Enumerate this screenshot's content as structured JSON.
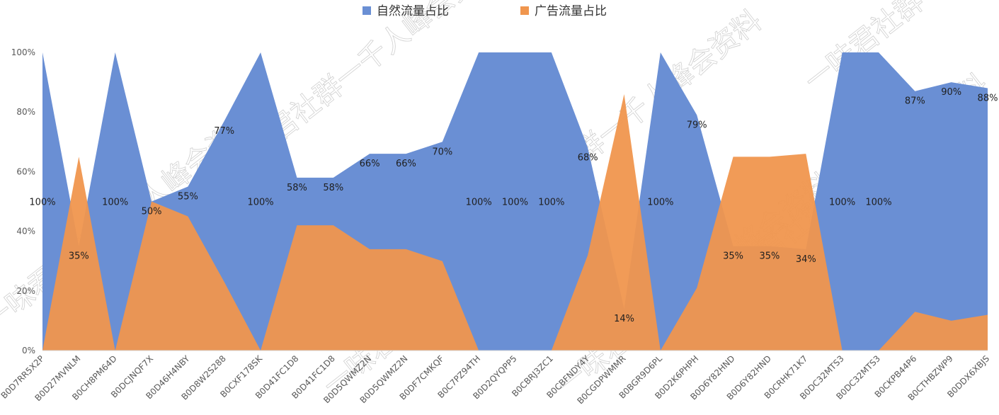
{
  "chart_data": {
    "type": "area",
    "categories": [
      "B0D7RR5X2P",
      "B0D27MVNLM",
      "B0CH8PM64D",
      "B0DCJNQF7X",
      "B0D46H4NBY",
      "B0D8W2S288",
      "B0CXF178SK",
      "B0D41FC1D8",
      "B0D41FC1D8",
      "B0D5QWMZ2N",
      "B0D5QWMZ2N",
      "B0DF7CMKQF",
      "B0C7PZ94TH",
      "B0D2QYQPP5",
      "B0CBRJ3ZC1",
      "B0CBFNDY4Y",
      "B0CGDPWMMR",
      "B0BGR9D6PL",
      "B0D2K6PHPH",
      "B0D6Y82HND",
      "B0D6Y82HND",
      "B0CRHK71K7",
      "B0DC32MTS3",
      "B0DC32MTS3",
      "B0CKPB44P6",
      "B0CTHBZWP9",
      "B0DDX6XBJS"
    ],
    "series": [
      {
        "name": "自然流量占比",
        "color": "#6A8FD4",
        "values": [
          100,
          35,
          100,
          50,
          55,
          77,
          100,
          58,
          58,
          66,
          66,
          70,
          100,
          100,
          100,
          68,
          14,
          100,
          79,
          35,
          35,
          34,
          100,
          100,
          87,
          90,
          88
        ],
        "labels": [
          "100%",
          "35%",
          "100%",
          "50%",
          "55%",
          "77%",
          "100%",
          "58%",
          "58%",
          "66%",
          "66%",
          "70%",
          "100%",
          "100%",
          "100%",
          "68%",
          "14%",
          "100%",
          "79%",
          "35%",
          "35%",
          "34%",
          "100%",
          "100%",
          "87%",
          "90%",
          "88%"
        ]
      },
      {
        "name": "广告流量占比",
        "color": "#F0964E",
        "values": [
          0,
          65,
          0,
          50,
          45,
          23,
          0,
          42,
          42,
          34,
          34,
          30,
          0,
          0,
          0,
          32,
          86,
          0,
          21,
          65,
          65,
          66,
          0,
          0,
          13,
          10,
          12
        ]
      }
    ],
    "y_ticks": [
      "0%",
      "20%",
      "40%",
      "60%",
      "80%",
      "100%"
    ],
    "ylim": [
      0,
      100
    ],
    "legend": "top-center",
    "grid": false
  },
  "watermark": "一味君社群一千人峰会资料"
}
